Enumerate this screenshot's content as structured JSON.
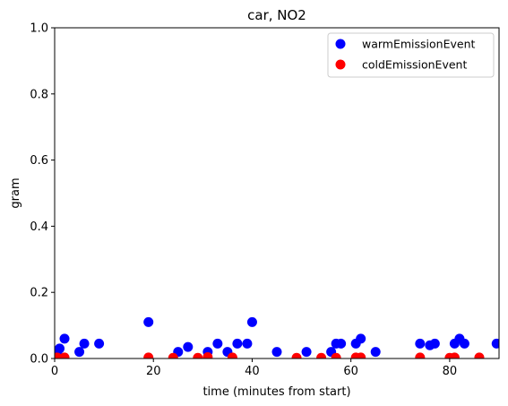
{
  "chart_data": {
    "type": "scatter",
    "title": "car, NO2",
    "xlabel": "time (minutes from start)",
    "ylabel": "gram",
    "xlim": [
      0,
      90
    ],
    "ylim": [
      0,
      1.0
    ],
    "xticks": [
      0,
      20,
      40,
      60,
      80
    ],
    "yticks": [
      0.0,
      0.2,
      0.4,
      0.6,
      0.8,
      1.0
    ],
    "grid": false,
    "legend_position": "top-right",
    "series": [
      {
        "name": "warmEmissionEvent",
        "color": "#0000ff",
        "points": [
          [
            0,
            0.005
          ],
          [
            0.5,
            0.01
          ],
          [
            1,
            0.03
          ],
          [
            2,
            0.06
          ],
          [
            5,
            0.02
          ],
          [
            6,
            0.045
          ],
          [
            9,
            0.045
          ],
          [
            19,
            0.11
          ],
          [
            25,
            0.02
          ],
          [
            27,
            0.035
          ],
          [
            31,
            0.02
          ],
          [
            33,
            0.045
          ],
          [
            35,
            0.02
          ],
          [
            37,
            0.045
          ],
          [
            39,
            0.045
          ],
          [
            40,
            0.11
          ],
          [
            45,
            0.02
          ],
          [
            51,
            0.02
          ],
          [
            56,
            0.02
          ],
          [
            57,
            0.045
          ],
          [
            58,
            0.045
          ],
          [
            61,
            0.045
          ],
          [
            62,
            0.06
          ],
          [
            65,
            0.02
          ],
          [
            74,
            0.045
          ],
          [
            76,
            0.04
          ],
          [
            77,
            0.045
          ],
          [
            81,
            0.045
          ],
          [
            82,
            0.06
          ],
          [
            83,
            0.045
          ],
          [
            89.5,
            0.045
          ]
        ]
      },
      {
        "name": "coldEmissionEvent",
        "color": "#ff0000",
        "points": [
          [
            0.5,
            0.003
          ],
          [
            2,
            0.003
          ],
          [
            19,
            0.003
          ],
          [
            24,
            0.002
          ],
          [
            29,
            0.002
          ],
          [
            31,
            0.004
          ],
          [
            36,
            0.003
          ],
          [
            49,
            0.002
          ],
          [
            54,
            0.002
          ],
          [
            57,
            0.002
          ],
          [
            61,
            0.003
          ],
          [
            62,
            0.003
          ],
          [
            74,
            0.003
          ],
          [
            80,
            0.002
          ],
          [
            81,
            0.003
          ],
          [
            86,
            0.003
          ]
        ]
      }
    ]
  }
}
